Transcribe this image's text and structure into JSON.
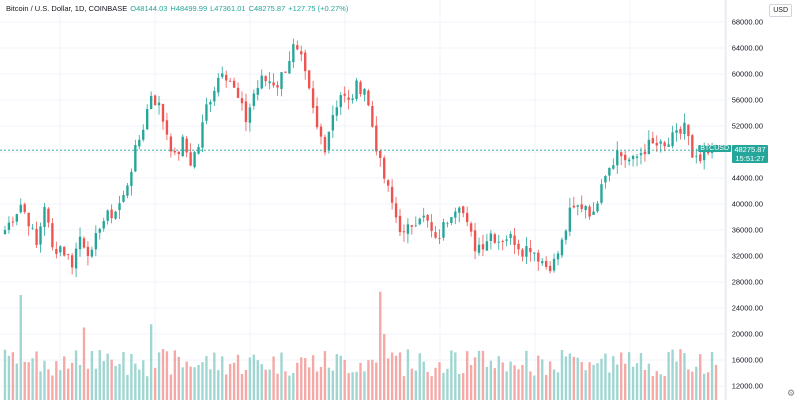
{
  "header": {
    "symbol_label": "Bitcoin / U.S. Dollar, 1D, COINBASE",
    "open_label": "O48144.03",
    "high_label": "H48499.99",
    "low_label": "L47361.01",
    "close_label": "C48275.87",
    "change_label": "+127.75 (+0.27%)"
  },
  "toolbar": {
    "currency_button": "USD"
  },
  "price_axis": {
    "ticks": [
      "68000.00",
      "64000.00",
      "60000.00",
      "56000.00",
      "52000.00",
      "48000.00",
      "44000.00",
      "40000.00",
      "36000.00",
      "32000.00",
      "28000.00",
      "24000.00",
      "20000.00",
      "16000.00",
      "12000.00"
    ]
  },
  "last_price": {
    "symbol": "BTCUSD",
    "price": "48275.87",
    "countdown": "15:51:27"
  },
  "colors": {
    "up": "#26a69a",
    "down": "#ef5350",
    "up_volume": "#9fd6d1",
    "down_volume": "#f4a9a7",
    "grid": "#f0f3fa",
    "price_line": "#26a69a"
  },
  "chart_data": {
    "type": "candlestick",
    "interval": "1D",
    "y_range": [
      12000,
      68000
    ],
    "grid": true,
    "current_price": 48275.87,
    "anchors": [
      [
        0,
        36000
      ],
      [
        4,
        40000
      ],
      [
        6,
        37500
      ],
      [
        8,
        33500
      ],
      [
        10,
        40000
      ],
      [
        12,
        33000
      ],
      [
        14,
        33500
      ],
      [
        17,
        31000
      ],
      [
        19,
        35000
      ],
      [
        22,
        32000
      ],
      [
        24,
        37000
      ],
      [
        28,
        39000
      ],
      [
        30,
        41000
      ],
      [
        33,
        48000
      ],
      [
        35,
        52000
      ],
      [
        37,
        57000
      ],
      [
        39,
        55000
      ],
      [
        41,
        51000
      ],
      [
        43,
        47000
      ],
      [
        45,
        49500
      ],
      [
        47,
        46500
      ],
      [
        49,
        49000
      ],
      [
        51,
        55000
      ],
      [
        53,
        58000
      ],
      [
        55,
        61000
      ],
      [
        57,
        59000
      ],
      [
        59,
        56000
      ],
      [
        61,
        53000
      ],
      [
        63,
        57000
      ],
      [
        65,
        59000
      ],
      [
        67,
        59000
      ],
      [
        69,
        58500
      ],
      [
        71,
        61000
      ],
      [
        73,
        64000
      ],
      [
        75,
        62000
      ],
      [
        77,
        57000
      ],
      [
        79,
        51500
      ],
      [
        81,
        49000
      ],
      [
        83,
        54000
      ],
      [
        85,
        57000
      ],
      [
        87,
        55500
      ],
      [
        89,
        58000
      ],
      [
        91,
        58000
      ],
      [
        93,
        52000
      ],
      [
        95,
        46000
      ],
      [
        97,
        42000
      ],
      [
        99,
        38000
      ],
      [
        101,
        35000
      ],
      [
        103,
        37000
      ],
      [
        105,
        38500
      ],
      [
        107,
        37000
      ],
      [
        109,
        34000
      ],
      [
        111,
        36500
      ],
      [
        113,
        39000
      ],
      [
        115,
        40500
      ],
      [
        117,
        36500
      ],
      [
        119,
        33500
      ],
      [
        121,
        34000
      ],
      [
        123,
        35500
      ],
      [
        125,
        34500
      ],
      [
        127,
        35000
      ],
      [
        129,
        34500
      ],
      [
        131,
        33000
      ],
      [
        133,
        33500
      ],
      [
        135,
        32000
      ],
      [
        137,
        30500
      ],
      [
        139,
        31000
      ],
      [
        141,
        34000
      ],
      [
        143,
        38500
      ],
      [
        145,
        39500
      ],
      [
        147,
        40000
      ],
      [
        149,
        38000
      ],
      [
        151,
        44000
      ],
      [
        153,
        46000
      ],
      [
        155,
        48000
      ],
      [
        157,
        47000
      ],
      [
        159,
        46500
      ],
      [
        161,
        48000
      ],
      [
        163,
        49000
      ],
      [
        165,
        49000
      ],
      [
        167,
        48500
      ],
      [
        169,
        50000
      ],
      [
        171,
        51000
      ],
      [
        172,
        52500
      ],
      [
        173,
        50000
      ],
      [
        174,
        46500
      ],
      [
        176,
        46500
      ],
      [
        178,
        47500
      ],
      [
        180,
        48275.87
      ]
    ],
    "volume_spikes": [
      [
        4,
        26000
      ],
      [
        20,
        21000
      ],
      [
        37,
        21500
      ],
      [
        95,
        26500
      ],
      [
        96,
        20000
      ],
      [
        143,
        17000
      ]
    ]
  }
}
